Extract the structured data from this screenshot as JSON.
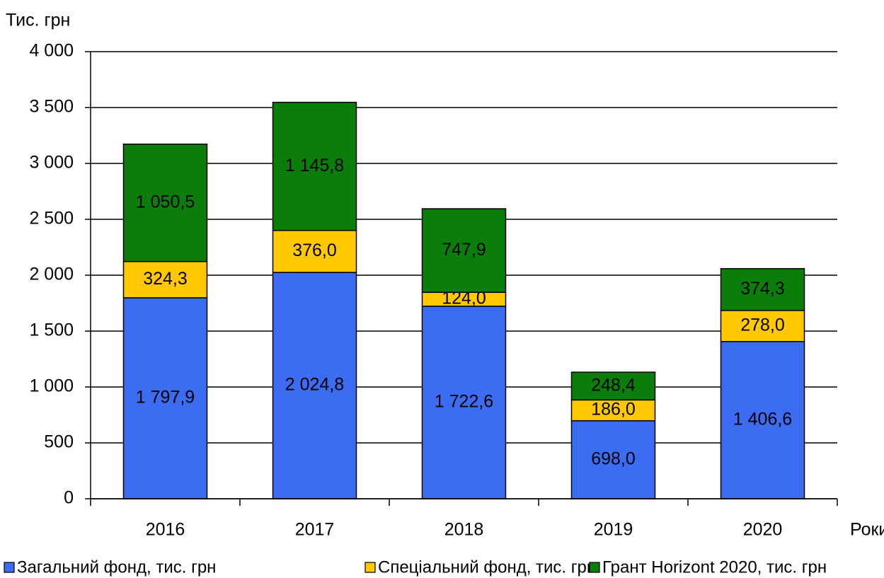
{
  "chart_data": {
    "type": "stacked_bar",
    "y_label": "Тис. грн",
    "x_label": "Роки",
    "categories": [
      "2016",
      "2017",
      "2018",
      "2019",
      "2020"
    ],
    "series": [
      {
        "name": "Загальний фонд, тис. грн",
        "color": "#3b6cf2",
        "values": [
          1797.9,
          2024.8,
          1722.6,
          698.0,
          1406.6
        ],
        "value_labels": [
          "1 797,9",
          "2 024,8",
          "1 722,6",
          "698,0",
          "1 406,6"
        ]
      },
      {
        "name": "Спеціальний фонд, тис. грн",
        "color": "#ffc800",
        "values": [
          324.3,
          376.0,
          124.0,
          186.0,
          278.0
        ],
        "value_labels": [
          "324,3",
          "376,0",
          "124,0",
          "186,0",
          "278,0"
        ]
      },
      {
        "name": "Грант Horizont 2020, тис. грн",
        "color": "#0b7d0b",
        "values": [
          1050.5,
          1145.8,
          747.9,
          248.4,
          374.3
        ],
        "value_labels": [
          "1 050,5",
          "1 145,8",
          "747,9",
          "248,4",
          "374,3"
        ]
      }
    ],
    "ylim": [
      0,
      4000
    ],
    "yticks": [
      0,
      500,
      {
        "value": 1000,
        "label": "1 000"
      },
      {
        "value": 1500,
        "label": "1 500"
      },
      {
        "value": 2000,
        "label": "2 000"
      },
      {
        "value": 2500,
        "label": "2 500"
      },
      {
        "value": 3000,
        "label": "3 000"
      },
      {
        "value": 3500,
        "label": "3 500"
      },
      {
        "value": 4000,
        "label": "4 000"
      }
    ],
    "grid": true,
    "legend": "bottom"
  }
}
